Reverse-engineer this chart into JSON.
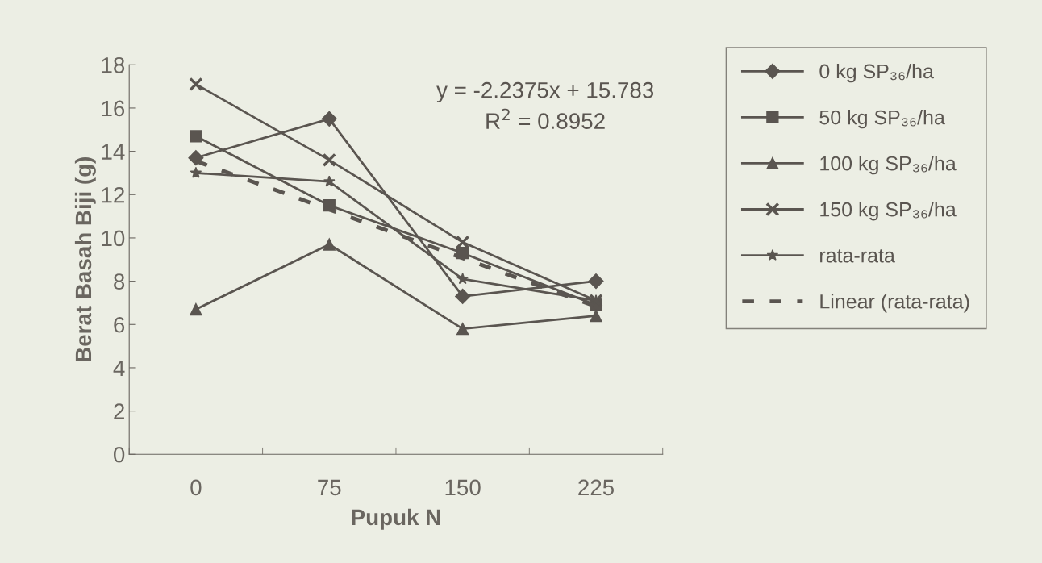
{
  "chart_data": {
    "type": "line",
    "xlabel": "Pupuk N",
    "ylabel": "Berat Basah Biji (g)",
    "categories": [
      "0",
      "75",
      "150",
      "225"
    ],
    "series": [
      {
        "name": "0 kg SP₃₆/ha",
        "color": "#5a5550",
        "marker": "diamond",
        "line_style": "solid",
        "values": [
          13.7,
          15.5,
          7.3,
          8.0
        ]
      },
      {
        "name": "50 kg SP₃₆/ha",
        "color": "#5a5550",
        "marker": "square",
        "line_style": "solid",
        "values": [
          14.7,
          11.5,
          9.3,
          6.9
        ]
      },
      {
        "name": "100 kg SP₃₆/ha",
        "color": "#5a5550",
        "marker": "triangle",
        "line_style": "solid",
        "values": [
          6.7,
          9.7,
          5.8,
          6.4
        ]
      },
      {
        "name": "150 kg SP₃₆/ha",
        "color": "#5a5550",
        "marker": "cross",
        "line_style": "solid",
        "values": [
          17.1,
          13.6,
          9.8,
          7.1
        ]
      },
      {
        "name": "rata-rata",
        "color": "#5a5550",
        "marker": "star",
        "line_style": "solid",
        "values": [
          13.0,
          12.6,
          8.1,
          7.1
        ]
      },
      {
        "name": "Linear (rata-rata)",
        "color": "#5a5550",
        "marker": "none",
        "line_style": "dashed",
        "x": [
          "0",
          "75",
          "150",
          "225"
        ],
        "values": [
          13.55,
          11.31,
          9.07,
          6.83
        ]
      }
    ],
    "ylim": [
      0,
      18
    ],
    "yticks": [
      0,
      2,
      4,
      6,
      8,
      10,
      12,
      14,
      16,
      18
    ],
    "annotations": [
      "y = -2.2375x + 15.783",
      "R$^{2}$ = 0.8952"
    ],
    "grid": false,
    "legend": "right"
  }
}
